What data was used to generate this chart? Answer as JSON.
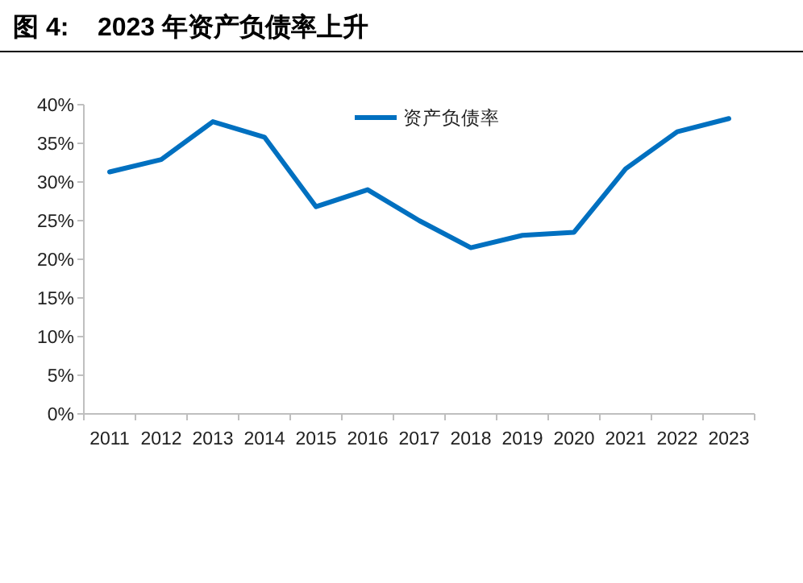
{
  "chart_data": {
    "type": "line",
    "title": "图 4:    2023 年资产负债率上升",
    "categories": [
      "2011",
      "2012",
      "2013",
      "2014",
      "2015",
      "2016",
      "2017",
      "2018",
      "2019",
      "2020",
      "2021",
      "2022",
      "2023"
    ],
    "series": [
      {
        "name": "资产负债率",
        "color": "#0070c0",
        "values": [
          31.3,
          32.9,
          37.8,
          35.8,
          26.8,
          29.0,
          25.0,
          21.5,
          23.1,
          23.5,
          31.7,
          36.5,
          38.2
        ]
      }
    ],
    "ylim": [
      0,
      40
    ],
    "yticks": [
      {
        "value": 0,
        "label": "0%"
      },
      {
        "value": 5,
        "label": "5%"
      },
      {
        "value": 10,
        "label": "10%"
      },
      {
        "value": 15,
        "label": "15%"
      },
      {
        "value": 20,
        "label": "20%"
      },
      {
        "value": 25,
        "label": "25%"
      },
      {
        "value": 30,
        "label": "30%"
      },
      {
        "value": 35,
        "label": "35%"
      },
      {
        "value": 40,
        "label": "40%"
      }
    ],
    "grid": false,
    "legend": "top",
    "marker": "none",
    "line_style": "solid"
  }
}
